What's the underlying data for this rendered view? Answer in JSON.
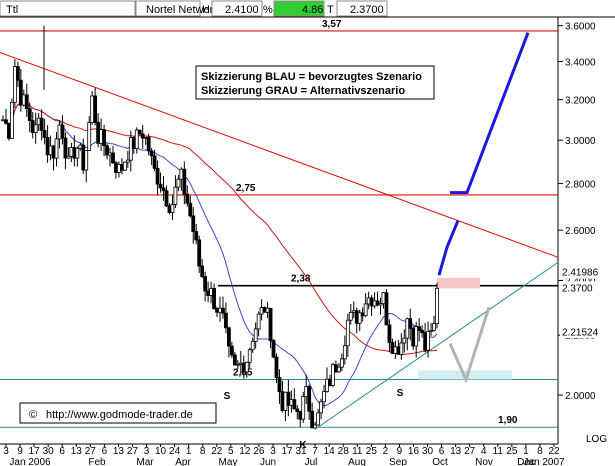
{
  "header": {
    "symbol": "Ttl",
    "name": "Nortel Networks",
    "high_label": "H",
    "high_value": "2.4100",
    "pct_label": "%",
    "pct_value": "4.86",
    "last_label": "T",
    "last_value": "2.3700"
  },
  "colors": {
    "resistance_red": "#e01010",
    "blue_scenario": "#1a1adc",
    "grey_scenario": "#b4b4b4",
    "trendline_teal": "#2a8a9a",
    "ma_blue": "#3a4ad8",
    "ma_red": "#c81818",
    "pct_bg": "#33cc33"
  },
  "chart_data": {
    "type": "candlestick",
    "ylim": [
      1.85,
      3.65
    ],
    "y_ticks": [
      "3.6000",
      "3.4000",
      "3.2000",
      "3.0000",
      "2.8000",
      "2.6000",
      "2.4000",
      "2.2000",
      "2.0000"
    ],
    "x_tick_days": [
      "3",
      "9",
      "17",
      "30",
      "6",
      "13",
      "27",
      "6",
      "13",
      "27",
      "3",
      "10",
      "24",
      "1",
      "8",
      "22",
      "5",
      "12",
      "26",
      "3",
      "17",
      "31",
      "7",
      "14",
      "28",
      "11",
      "25",
      "2",
      "9",
      "16",
      "30",
      "6",
      "13",
      "27",
      "4",
      "11",
      "25",
      "1",
      "8",
      "22"
    ],
    "x_months": [
      "Jan 2006",
      "Feb",
      "Mar",
      "Apr",
      "May",
      "Jun",
      "Jul",
      "Aug",
      "Sep",
      "Oct",
      "Nov",
      "Dec",
      "Jan 2007"
    ],
    "scale_label": "LOG",
    "price_badges": [
      {
        "value": "2.41986",
        "color": "#e01010"
      },
      {
        "value": "2.3700",
        "color": "#000000"
      },
      {
        "value": "2.21524",
        "color": "#2020c8"
      }
    ],
    "levels": [
      {
        "label": "3,57",
        "value": 3.57,
        "color": "#e01010"
      },
      {
        "label": "2,75",
        "value": 2.75,
        "color": "#e01010"
      },
      {
        "label": "2,38",
        "value": 2.38,
        "color": "#000000"
      },
      {
        "label": "2,05",
        "value": 2.05,
        "color": "#2a8a9a"
      },
      {
        "label": "1,90",
        "value": 1.9,
        "color": "#2a8a9a"
      }
    ],
    "pattern_labels": [
      {
        "text": "S",
        "pos": "left shoulder"
      },
      {
        "text": "K",
        "pos": "head"
      },
      {
        "text": "S",
        "pos": "right shoulder"
      }
    ],
    "legend_lines": [
      "Skizzierung BLAU = bevorzugtes Szenario",
      "Skizzierung GRAU = Alternativszenario"
    ],
    "copyright": "http://www.godmode-trader.de",
    "copyright_symbol": "©",
    "anchors": [
      [
        0,
        3.1
      ],
      [
        6,
        3.05
      ],
      [
        12,
        3.38
      ],
      [
        18,
        3.22
      ],
      [
        26,
        3.12
      ],
      [
        32,
        3.03
      ],
      [
        38,
        3.12
      ],
      [
        44,
        2.96
      ],
      [
        52,
        2.95
      ],
      [
        58,
        3.1
      ],
      [
        66,
        2.88
      ],
      [
        74,
        2.98
      ],
      [
        82,
        2.88
      ],
      [
        90,
        3.2
      ],
      [
        96,
        3.02
      ],
      [
        102,
        2.98
      ],
      [
        110,
        2.92
      ],
      [
        118,
        2.85
      ],
      [
        126,
        2.95
      ],
      [
        134,
        3.0
      ],
      [
        140,
        3.05
      ],
      [
        146,
        2.98
      ],
      [
        152,
        2.86
      ],
      [
        158,
        2.82
      ],
      [
        164,
        2.75
      ],
      [
        170,
        2.7
      ],
      [
        176,
        2.8
      ],
      [
        180,
        2.82
      ],
      [
        186,
        2.72
      ],
      [
        192,
        2.6
      ],
      [
        198,
        2.46
      ],
      [
        204,
        2.38
      ],
      [
        210,
        2.35
      ],
      [
        216,
        2.3
      ],
      [
        222,
        2.25
      ],
      [
        228,
        2.13
      ],
      [
        234,
        2.08
      ],
      [
        240,
        2.1
      ],
      [
        246,
        2.12
      ],
      [
        252,
        2.2
      ],
      [
        258,
        2.26
      ],
      [
        264,
        2.3
      ],
      [
        270,
        2.22
      ],
      [
        276,
        2.05
      ],
      [
        282,
        1.98
      ],
      [
        288,
        1.97
      ],
      [
        294,
        1.95
      ],
      [
        300,
        1.95
      ],
      [
        306,
        2.0
      ],
      [
        312,
        1.93
      ],
      [
        318,
        1.93
      ],
      [
        324,
        2.0
      ],
      [
        330,
        2.05
      ],
      [
        336,
        2.1
      ],
      [
        342,
        2.15
      ],
      [
        348,
        2.25
      ],
      [
        354,
        2.26
      ],
      [
        360,
        2.28
      ],
      [
        366,
        2.33
      ],
      [
        372,
        2.34
      ],
      [
        378,
        2.33
      ],
      [
        384,
        2.33
      ],
      [
        390,
        2.2
      ],
      [
        396,
        2.15
      ],
      [
        402,
        2.18
      ],
      [
        408,
        2.26
      ],
      [
        414,
        2.2
      ],
      [
        420,
        2.22
      ],
      [
        426,
        2.16
      ],
      [
        432,
        2.2
      ],
      [
        436,
        2.24
      ],
      [
        438,
        2.37
      ]
    ]
  }
}
